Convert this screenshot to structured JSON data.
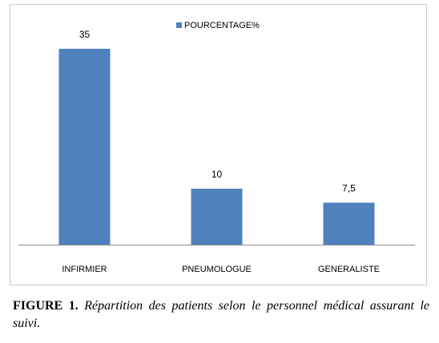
{
  "chart_data": {
    "type": "bar",
    "categories": [
      "INFIRMIER",
      "PNEUMOLOGUE",
      "GENERALISTE"
    ],
    "series": [
      {
        "name": "POURCENTAGE%",
        "values": [
          35,
          10,
          7.5
        ],
        "color": "#4f81bd"
      }
    ],
    "data_labels": [
      "35",
      "10",
      "7,5"
    ],
    "ylim": [
      0,
      40
    ],
    "grid": false,
    "legend": "top-center"
  },
  "caption": {
    "number": "FIGURE 1.",
    "text": "Répartition des patients selon le personnel médical assurant le suivi."
  }
}
